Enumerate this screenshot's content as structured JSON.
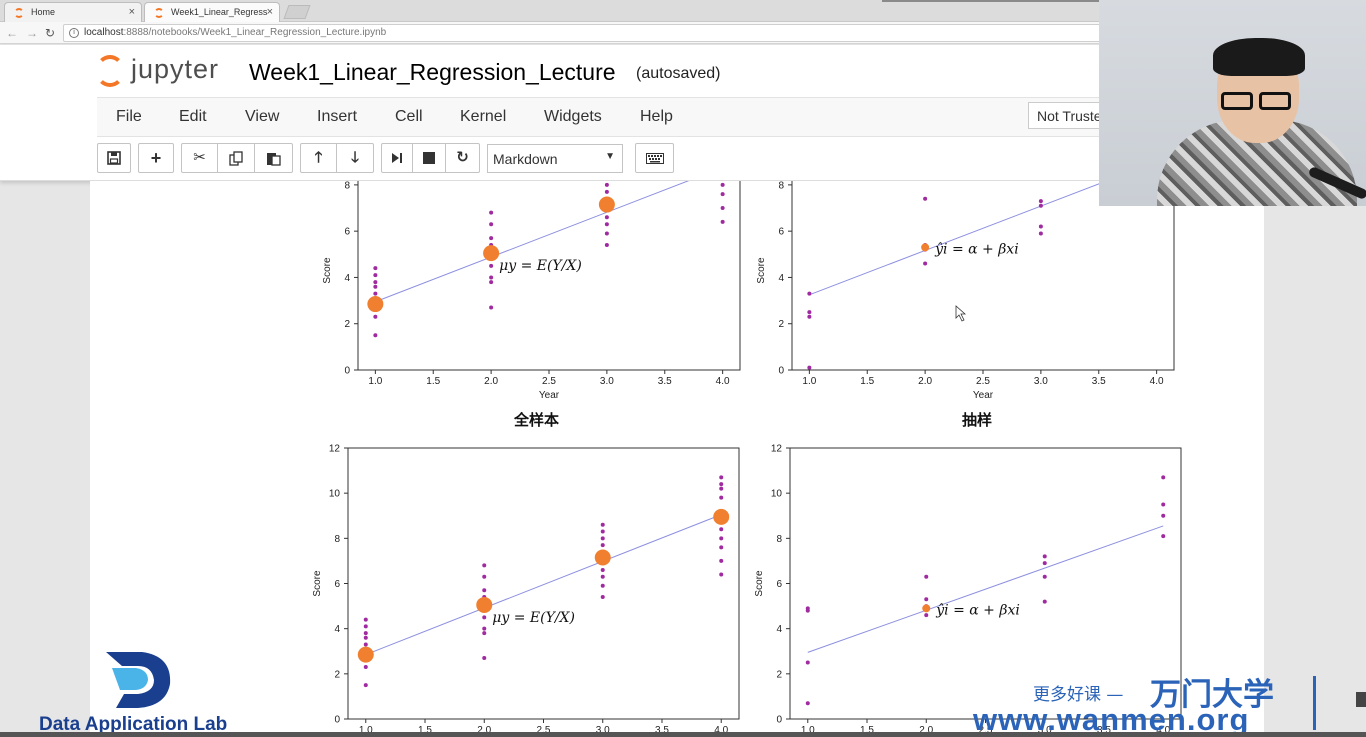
{
  "browser": {
    "tabs": [
      {
        "label": "Home",
        "active": false
      },
      {
        "label": "Week1_Linear_Regress",
        "active": true
      }
    ],
    "url_host": "localhost",
    "url_rest": ":8888/notebooks/Week1_Linear_Regression_Lecture.ipynb"
  },
  "jupyter": {
    "logo_text": "jupyter",
    "notebook_title": "Week1_Linear_Regression_Lecture",
    "save_status": "(autosaved)",
    "menu": [
      "File",
      "Edit",
      "View",
      "Insert",
      "Cell",
      "Kernel",
      "Widgets",
      "Help"
    ],
    "trusted_label": "Not Trusted",
    "cell_type": "Markdown",
    "toolbar_icons": [
      "save-icon",
      "plus-icon",
      "scissors-icon",
      "copy-icon",
      "paste-icon",
      "arrow-up-icon",
      "arrow-down-icon",
      "step-forward-icon",
      "stop-icon",
      "restart-icon",
      "keyboard-icon"
    ]
  },
  "figure": {
    "panel_titles": [
      "全样本",
      "抽样"
    ],
    "formula_mean": "μy = E(Y/X)",
    "formula_model": "ŷi = α + βxi",
    "point_color": "#a02aa0",
    "mean_color": "#f08030",
    "line_color": "#8c8fe0"
  },
  "chart_data": [
    {
      "type": "scatter",
      "panel": "top-left",
      "xlabel": "Year",
      "ylabel": "Score",
      "xticks": [
        "1.0",
        "1.5",
        "2.0",
        "2.5",
        "3.0",
        "3.5",
        "4.0"
      ],
      "yticks": [
        "0",
        "2",
        "4",
        "6",
        "8"
      ],
      "xlim": [
        0.85,
        4.15
      ],
      "ylim": [
        0,
        8.6
      ],
      "points": [
        [
          1,
          1.5
        ],
        [
          1,
          2.3
        ],
        [
          1,
          2.7
        ],
        [
          1,
          3.0
        ],
        [
          1,
          3.3
        ],
        [
          1,
          3.6
        ],
        [
          1,
          3.8
        ],
        [
          1,
          4.1
        ],
        [
          1,
          4.4
        ],
        [
          2,
          2.7
        ],
        [
          2,
          3.8
        ],
        [
          2,
          4.0
        ],
        [
          2,
          4.5
        ],
        [
          2,
          5.0
        ],
        [
          2,
          5.4
        ],
        [
          2,
          5.7
        ],
        [
          2,
          6.3
        ],
        [
          2,
          6.8
        ],
        [
          3,
          5.4
        ],
        [
          3,
          5.9
        ],
        [
          3,
          6.3
        ],
        [
          3,
          6.6
        ],
        [
          3,
          7.1
        ],
        [
          3,
          7.4
        ],
        [
          3,
          7.7
        ],
        [
          3,
          8.0
        ],
        [
          3,
          8.3
        ],
        [
          4,
          6.4
        ],
        [
          4,
          7.0
        ],
        [
          4,
          7.6
        ],
        [
          4,
          8.0
        ],
        [
          4,
          8.4
        ]
      ],
      "means": [
        [
          1,
          2.85
        ],
        [
          2,
          5.05
        ],
        [
          3,
          7.15
        ]
      ],
      "line": [
        [
          1,
          2.95
        ],
        [
          4,
          8.75
        ]
      ],
      "annotation": "μy = E(Y/X)"
    },
    {
      "type": "scatter",
      "panel": "top-right",
      "xlabel": "Year",
      "ylabel": "Score",
      "xticks": [
        "1.0",
        "1.5",
        "2.0",
        "2.5",
        "3.0",
        "3.5",
        "4.0"
      ],
      "yticks": [
        "0",
        "2",
        "4",
        "6",
        "8"
      ],
      "xlim": [
        0.85,
        4.15
      ],
      "ylim": [
        0,
        8.6
      ],
      "points": [
        [
          1,
          0.1
        ],
        [
          1,
          2.3
        ],
        [
          1,
          2.5
        ],
        [
          1,
          3.3
        ],
        [
          2,
          4.6
        ],
        [
          2,
          5.2
        ],
        [
          2,
          5.4
        ],
        [
          2,
          7.4
        ],
        [
          3,
          5.9
        ],
        [
          3,
          6.2
        ],
        [
          3,
          7.1
        ],
        [
          3,
          7.3
        ]
      ],
      "means": [
        [
          2,
          5.3
        ]
      ],
      "line": [
        [
          1,
          3.25
        ],
        [
          4,
          9.0
        ]
      ],
      "annotation": "ŷi = α + βxi"
    },
    {
      "type": "scatter",
      "panel": "bottom-left",
      "xlabel": "",
      "ylabel": "Score",
      "xticks": [
        "1.0",
        "1.5",
        "2.0",
        "2.5",
        "3.0",
        "3.5",
        "4.0"
      ],
      "yticks": [
        "0",
        "2",
        "4",
        "6",
        "8",
        "10",
        "12"
      ],
      "xlim": [
        0.85,
        4.15
      ],
      "ylim": [
        0,
        12
      ],
      "points": [
        [
          1,
          1.5
        ],
        [
          1,
          2.3
        ],
        [
          1,
          2.7
        ],
        [
          1,
          3.0
        ],
        [
          1,
          3.3
        ],
        [
          1,
          3.6
        ],
        [
          1,
          3.8
        ],
        [
          1,
          4.1
        ],
        [
          1,
          4.4
        ],
        [
          2,
          2.7
        ],
        [
          2,
          3.8
        ],
        [
          2,
          4.0
        ],
        [
          2,
          4.5
        ],
        [
          2,
          5.0
        ],
        [
          2,
          5.4
        ],
        [
          2,
          5.7
        ],
        [
          2,
          6.3
        ],
        [
          2,
          6.8
        ],
        [
          3,
          5.4
        ],
        [
          3,
          5.9
        ],
        [
          3,
          6.3
        ],
        [
          3,
          6.6
        ],
        [
          3,
          7.1
        ],
        [
          3,
          7.4
        ],
        [
          3,
          7.7
        ],
        [
          3,
          8.0
        ],
        [
          3,
          8.3
        ],
        [
          3,
          8.6
        ],
        [
          4,
          6.4
        ],
        [
          4,
          7.0
        ],
        [
          4,
          7.6
        ],
        [
          4,
          8.0
        ],
        [
          4,
          8.4
        ],
        [
          4,
          9.2
        ],
        [
          4,
          9.8
        ],
        [
          4,
          10.2
        ],
        [
          4,
          10.4
        ],
        [
          4,
          10.7
        ]
      ],
      "means": [
        [
          1,
          2.85
        ],
        [
          2,
          5.05
        ],
        [
          3,
          7.15
        ],
        [
          4,
          8.95
        ]
      ],
      "line": [
        [
          1,
          2.85
        ],
        [
          4,
          9.05
        ]
      ],
      "annotation": "μy = E(Y/X)"
    },
    {
      "type": "scatter",
      "panel": "bottom-right",
      "xlabel": "",
      "ylabel": "Score",
      "xticks": [
        "1.0",
        "1.5",
        "2.0",
        "2.5",
        "3.0",
        "3.5",
        "4.0"
      ],
      "yticks": [
        "0",
        "2",
        "4",
        "6",
        "8",
        "10",
        "12"
      ],
      "xlim": [
        0.85,
        4.15
      ],
      "ylim": [
        0,
        12
      ],
      "points": [
        [
          1,
          0.7
        ],
        [
          1,
          2.5
        ],
        [
          1,
          4.8
        ],
        [
          1,
          4.9
        ],
        [
          2,
          4.6
        ],
        [
          2,
          5.0
        ],
        [
          2,
          5.3
        ],
        [
          2,
          6.3
        ],
        [
          3,
          5.2
        ],
        [
          3,
          6.3
        ],
        [
          3,
          6.9
        ],
        [
          3,
          7.2
        ],
        [
          4,
          8.1
        ],
        [
          4,
          9.0
        ],
        [
          4,
          9.5
        ],
        [
          4,
          10.7
        ]
      ],
      "means": [
        [
          2,
          4.9
        ]
      ],
      "line": [
        [
          1,
          2.95
        ],
        [
          4,
          8.55
        ]
      ],
      "annotation": "ŷi = α + βxi"
    }
  ],
  "watermark": {
    "lab": "Data Application Lab",
    "cn_slogan": "更多好课 —",
    "cn_brand": "万门大学",
    "site": "www.wanmen.org"
  }
}
